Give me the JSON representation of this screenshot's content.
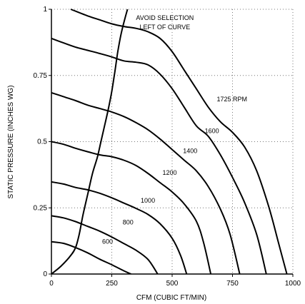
{
  "chart_data": {
    "type": "line",
    "title": "",
    "xlabel": "CFM (CUBIC FT/MIN)",
    "ylabel": "STATIC PRESSURE (INCHES WG)",
    "xlim": [
      0,
      1000
    ],
    "ylim": [
      0,
      1
    ],
    "x_ticks": [
      0,
      250,
      500,
      750,
      1000
    ],
    "x_tick_labels": [
      "0",
      "250",
      "500",
      "750",
      "1000"
    ],
    "y_ticks": [
      0,
      0.25,
      0.5,
      0.75,
      1
    ],
    "y_tick_labels": [
      "0",
      "0.25",
      "0.5",
      "0.75",
      "1"
    ],
    "grid": "dotted",
    "series": [
      {
        "name": "600",
        "label_at": [
          210,
          0.115
        ],
        "points": [
          [
            0,
            0.122
          ],
          [
            50,
            0.116
          ],
          [
            100,
            0.1
          ],
          [
            150,
            0.08
          ],
          [
            200,
            0.056
          ],
          [
            250,
            0.035
          ],
          [
            300,
            0.012
          ],
          [
            330,
            0
          ]
        ]
      },
      {
        "name": "800",
        "label_at": [
          295,
          0.188
        ],
        "points": [
          [
            0,
            0.22
          ],
          [
            50,
            0.212
          ],
          [
            100,
            0.198
          ],
          [
            150,
            0.18
          ],
          [
            200,
            0.162
          ],
          [
            250,
            0.14
          ],
          [
            300,
            0.115
          ],
          [
            350,
            0.09
          ],
          [
            400,
            0.055
          ],
          [
            440,
            0
          ]
        ]
      },
      {
        "name": "1000",
        "label_at": [
          370,
          0.27
        ],
        "points": [
          [
            0,
            0.348
          ],
          [
            50,
            0.34
          ],
          [
            100,
            0.327
          ],
          [
            150,
            0.318
          ],
          [
            200,
            0.305
          ],
          [
            250,
            0.288
          ],
          [
            300,
            0.268
          ],
          [
            350,
            0.248
          ],
          [
            400,
            0.225
          ],
          [
            450,
            0.19
          ],
          [
            500,
            0.135
          ],
          [
            535,
            0.07
          ],
          [
            560,
            0
          ]
        ]
      },
      {
        "name": "1200",
        "label_at": [
          460,
          0.375
        ],
        "points": [
          [
            0,
            0.5
          ],
          [
            50,
            0.49
          ],
          [
            100,
            0.475
          ],
          [
            150,
            0.462
          ],
          [
            200,
            0.45
          ],
          [
            250,
            0.443
          ],
          [
            300,
            0.43
          ],
          [
            350,
            0.41
          ],
          [
            400,
            0.38
          ],
          [
            450,
            0.345
          ],
          [
            500,
            0.31
          ],
          [
            550,
            0.265
          ],
          [
            600,
            0.2
          ],
          [
            630,
            0.12
          ],
          [
            660,
            0
          ]
        ]
      },
      {
        "name": "1400",
        "label_at": [
          545,
          0.457
        ],
        "points": [
          [
            0,
            0.685
          ],
          [
            50,
            0.67
          ],
          [
            100,
            0.655
          ],
          [
            150,
            0.638
          ],
          [
            200,
            0.625
          ],
          [
            250,
            0.612
          ],
          [
            300,
            0.595
          ],
          [
            350,
            0.572
          ],
          [
            400,
            0.545
          ],
          [
            450,
            0.51
          ],
          [
            500,
            0.47
          ],
          [
            550,
            0.43
          ],
          [
            600,
            0.39
          ],
          [
            650,
            0.33
          ],
          [
            700,
            0.245
          ],
          [
            740,
            0.15
          ],
          [
            780,
            0
          ]
        ]
      },
      {
        "name": "1600",
        "label_at": [
          635,
          0.533
        ],
        "points": [
          [
            0,
            0.89
          ],
          [
            50,
            0.873
          ],
          [
            100,
            0.857
          ],
          [
            150,
            0.845
          ],
          [
            200,
            0.833
          ],
          [
            250,
            0.82
          ],
          [
            300,
            0.805
          ],
          [
            350,
            0.8
          ],
          [
            400,
            0.79
          ],
          [
            450,
            0.755
          ],
          [
            500,
            0.7
          ],
          [
            550,
            0.63
          ],
          [
            600,
            0.56
          ],
          [
            650,
            0.52
          ],
          [
            700,
            0.45
          ],
          [
            750,
            0.365
          ],
          [
            800,
            0.27
          ],
          [
            850,
            0.15
          ],
          [
            890,
            0
          ]
        ]
      },
      {
        "name": "1725 RPM",
        "label_at": [
          685,
          0.652
        ],
        "points": [
          [
            80,
            1
          ],
          [
            150,
            0.975
          ],
          [
            200,
            0.96
          ],
          [
            250,
            0.945
          ],
          [
            300,
            0.935
          ],
          [
            350,
            0.928
          ],
          [
            400,
            0.915
          ],
          [
            450,
            0.89
          ],
          [
            500,
            0.84
          ],
          [
            550,
            0.77
          ],
          [
            600,
            0.7
          ],
          [
            650,
            0.63
          ],
          [
            700,
            0.575
          ],
          [
            750,
            0.535
          ],
          [
            800,
            0.48
          ],
          [
            850,
            0.39
          ],
          [
            900,
            0.255
          ],
          [
            940,
            0.12
          ],
          [
            975,
            0
          ]
        ]
      }
    ],
    "limit_curve": {
      "name": "AVOID SELECTION LEFT OF CURVE",
      "points": [
        [
          0,
          0
        ],
        [
          40,
          0.03
        ],
        [
          80,
          0.07
        ],
        [
          100,
          0.1
        ],
        [
          115,
          0.15
        ],
        [
          130,
          0.22
        ],
        [
          150,
          0.3
        ],
        [
          170,
          0.38
        ],
        [
          190,
          0.44
        ],
        [
          205,
          0.5
        ],
        [
          220,
          0.56
        ],
        [
          235,
          0.62
        ],
        [
          250,
          0.69
        ],
        [
          262,
          0.76
        ],
        [
          275,
          0.84
        ],
        [
          287,
          0.9
        ],
        [
          300,
          0.95
        ],
        [
          315,
          1
        ]
      ]
    },
    "annotations": [
      {
        "text": "AVOID SELECTION",
        "at": [
          470,
          0.96
        ]
      },
      {
        "text": "LEFT OF CURVE",
        "at": [
          470,
          0.925
        ]
      }
    ]
  }
}
